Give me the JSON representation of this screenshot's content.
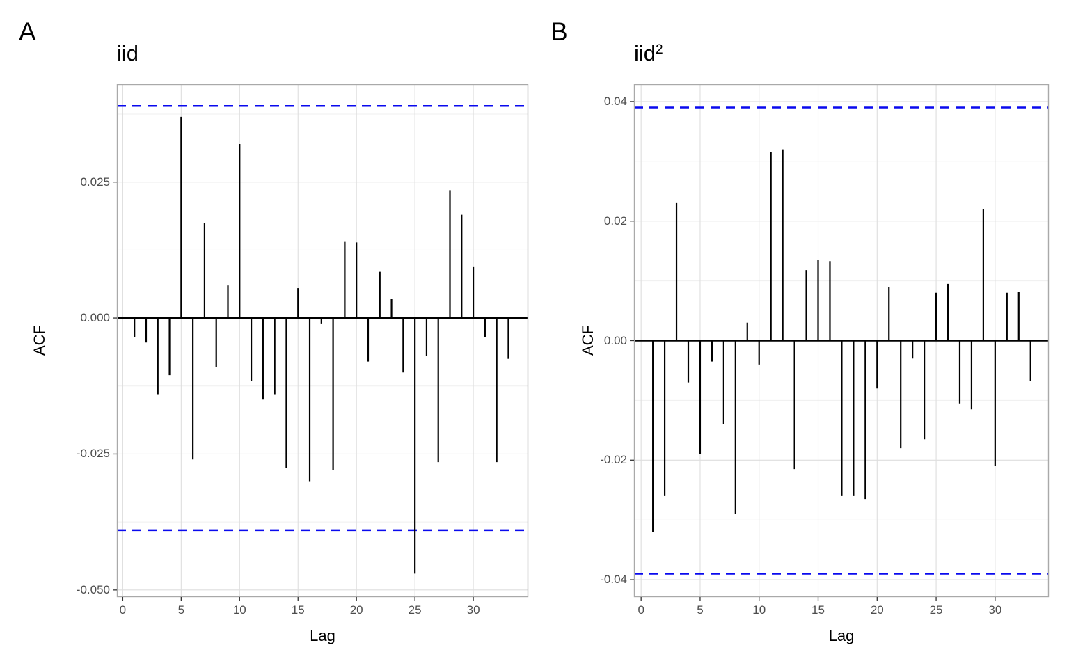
{
  "figure": {
    "background": "#ffffff"
  },
  "chart_data": [
    {
      "type": "bar",
      "variant": "acf-lollipop",
      "tag": "A",
      "title": "iid",
      "title_superscript": "",
      "xlabel": "Lag",
      "ylabel": "ACF",
      "x": [
        1,
        2,
        3,
        4,
        5,
        6,
        7,
        8,
        9,
        10,
        11,
        12,
        13,
        14,
        15,
        16,
        17,
        18,
        19,
        20,
        21,
        22,
        23,
        24,
        25,
        26,
        27,
        28,
        29,
        30,
        31,
        32,
        33
      ],
      "values": [
        -0.0035,
        -0.0045,
        -0.014,
        -0.0105,
        0.037,
        -0.026,
        0.0175,
        -0.009,
        0.006,
        0.032,
        -0.0115,
        -0.015,
        -0.014,
        -0.0275,
        0.0055,
        -0.03,
        -0.001,
        -0.028,
        0.014,
        0.0139,
        -0.008,
        0.0085,
        0.0035,
        -0.01,
        -0.047,
        -0.007,
        -0.0265,
        0.0235,
        0.019,
        0.0095,
        -0.0035,
        -0.0265,
        -0.0075
      ],
      "ci_upper": 0.039,
      "ci_lower": -0.039,
      "xlim": [
        -0.5,
        34.7
      ],
      "ylim": [
        -0.0513,
        0.043
      ],
      "x_ticks": [
        0,
        5,
        10,
        15,
        20,
        25,
        30
      ],
      "x_tick_labels": [
        "0",
        "5",
        "10",
        "15",
        "20",
        "25",
        "30"
      ],
      "y_ticks": [
        0.025,
        0.0,
        -0.025,
        -0.05
      ],
      "y_tick_labels": [
        "0.025",
        "0.000",
        "-0.025",
        "-0.050"
      ],
      "y_minor_ticks": [
        0.0375,
        0.0125,
        -0.0125,
        -0.0375
      ],
      "grid": true,
      "legend": "none"
    },
    {
      "type": "bar",
      "variant": "acf-lollipop",
      "tag": "B",
      "title": "iid",
      "title_superscript": "2",
      "xlabel": "Lag",
      "ylabel": "ACF",
      "x": [
        1,
        2,
        3,
        4,
        5,
        6,
        7,
        8,
        9,
        10,
        11,
        12,
        13,
        14,
        15,
        16,
        17,
        18,
        19,
        20,
        21,
        22,
        23,
        24,
        25,
        26,
        27,
        28,
        29,
        30,
        31,
        32,
        33
      ],
      "values": [
        -0.032,
        -0.026,
        0.023,
        -0.007,
        -0.019,
        -0.0035,
        -0.014,
        -0.029,
        0.003,
        -0.004,
        0.0315,
        0.032,
        -0.0215,
        0.0118,
        0.0135,
        0.0133,
        -0.026,
        -0.026,
        -0.0265,
        -0.008,
        0.009,
        -0.018,
        -0.003,
        -0.0165,
        0.008,
        0.0095,
        -0.0105,
        -0.0115,
        0.022,
        -0.021,
        0.008,
        0.0082,
        -0.0067
      ],
      "ci_upper": 0.039,
      "ci_lower": -0.039,
      "xlim": [
        -0.6,
        34.55
      ],
      "ylim": [
        -0.0429,
        0.0429
      ],
      "x_ticks": [
        0,
        5,
        10,
        15,
        20,
        25,
        30
      ],
      "x_tick_labels": [
        "0",
        "5",
        "10",
        "15",
        "20",
        "25",
        "30"
      ],
      "y_ticks": [
        0.04,
        0.02,
        0.0,
        -0.02,
        -0.04
      ],
      "y_tick_labels": [
        "0.04",
        "0.02",
        "0.00",
        "-0.02",
        "-0.04"
      ],
      "y_minor_ticks": [
        0.03,
        0.01,
        -0.01,
        -0.03
      ],
      "grid": true,
      "legend": "none"
    }
  ],
  "colors": {
    "bar": "#000000",
    "zero_line": "#000000",
    "ci_line": "#0a0aee",
    "grid_major": "#dedede",
    "grid_minor": "#efefef",
    "panel_border": "#a9a9a9",
    "tick_mark": "#333333",
    "tick_label": "#4d4d4d",
    "text": "#000000"
  }
}
